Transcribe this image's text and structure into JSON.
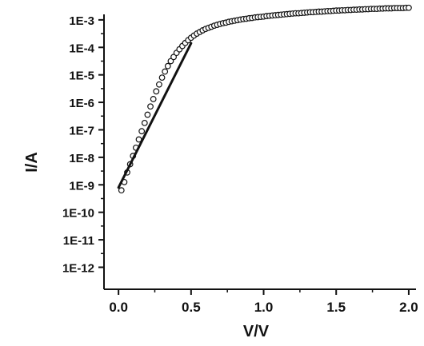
{
  "chart_data": {
    "type": "scatter",
    "title": "",
    "xlabel": "V/V",
    "ylabel": "I/A",
    "x_ticks": [
      "0.0",
      "0.5",
      "1.0",
      "1.5",
      "2.0"
    ],
    "x_tick_values": [
      0.0,
      0.5,
      1.0,
      1.5,
      2.0
    ],
    "y_ticks": [
      "1E-12",
      "1E-11",
      "1E-10",
      "1E-9",
      "1E-8",
      "1E-7",
      "1E-6",
      "1E-5",
      "1E-4",
      "1E-3"
    ],
    "y_tick_values": [
      -12,
      -11,
      -10,
      -9,
      -8,
      -7,
      -6,
      -5,
      -4,
      -3
    ],
    "xlim": [
      -0.1,
      2.05
    ],
    "ylim": [
      "1E-12.8",
      "1E-2.8"
    ],
    "y_scale": "log",
    "grid": false,
    "series": [
      {
        "marker": "open-circle",
        "x": [
          0.02,
          0.04,
          0.06,
          0.08,
          0.1,
          0.12,
          0.14,
          0.16,
          0.18,
          0.2,
          0.22,
          0.24,
          0.26,
          0.28,
          0.3,
          0.32,
          0.34,
          0.36,
          0.38,
          0.4,
          0.42,
          0.44,
          0.46,
          0.48,
          0.5,
          0.52,
          0.54,
          0.56,
          0.58,
          0.6,
          0.62,
          0.64,
          0.66,
          0.68,
          0.7,
          0.72,
          0.74,
          0.76,
          0.78,
          0.8,
          0.82,
          0.84,
          0.86,
          0.88,
          0.9,
          0.92,
          0.94,
          0.96,
          0.98,
          1.0,
          1.02,
          1.04,
          1.06,
          1.08,
          1.1,
          1.12,
          1.14,
          1.16,
          1.18,
          1.2,
          1.22,
          1.24,
          1.26,
          1.28,
          1.3,
          1.32,
          1.34,
          1.36,
          1.38,
          1.4,
          1.42,
          1.44,
          1.46,
          1.48,
          1.5,
          1.52,
          1.54,
          1.56,
          1.58,
          1.6,
          1.62,
          1.64,
          1.66,
          1.68,
          1.7,
          1.72,
          1.74,
          1.76,
          1.78,
          1.8,
          1.82,
          1.84,
          1.86,
          1.88,
          1.9,
          1.92,
          1.94,
          1.96,
          1.98,
          2.0
        ],
        "log10_y": [
          -9.2,
          -8.9,
          -8.55,
          -8.25,
          -7.95,
          -7.65,
          -7.35,
          -7.05,
          -6.75,
          -6.45,
          -6.15,
          -5.88,
          -5.6,
          -5.35,
          -5.1,
          -4.88,
          -4.68,
          -4.5,
          -4.35,
          -4.2,
          -4.07,
          -3.95,
          -3.84,
          -3.74,
          -3.65,
          -3.57,
          -3.5,
          -3.44,
          -3.38,
          -3.33,
          -3.29,
          -3.25,
          -3.21,
          -3.18,
          -3.15,
          -3.12,
          -3.1,
          -3.07,
          -3.05,
          -3.03,
          -3.01,
          -2.99,
          -2.97,
          -2.96,
          -2.94,
          -2.93,
          -2.91,
          -2.9,
          -2.89,
          -2.88,
          -2.86,
          -2.85,
          -2.84,
          -2.83,
          -2.82,
          -2.81,
          -2.8,
          -2.79,
          -2.78,
          -2.77,
          -2.76,
          -2.76,
          -2.75,
          -2.74,
          -2.73,
          -2.72,
          -2.72,
          -2.71,
          -2.7,
          -2.7,
          -2.69,
          -2.68,
          -2.68,
          -2.67,
          -2.66,
          -2.66,
          -2.65,
          -2.65,
          -2.64,
          -2.64,
          -2.63,
          -2.63,
          -2.62,
          -2.62,
          -2.61,
          -2.61,
          -2.6,
          -2.6,
          -2.6,
          -2.59,
          -2.59,
          -2.58,
          -2.58,
          -2.58,
          -2.57,
          -2.57,
          -2.57,
          -2.57,
          -2.56,
          -2.56
        ]
      },
      {
        "marker": "solid-line",
        "x": [
          0.0,
          0.5
        ],
        "log10_y": [
          -9.1,
          -3.85
        ]
      }
    ],
    "colors": {
      "axis": "#111111",
      "markers": "#111111",
      "fit_line": "#111111",
      "background": "#ffffff"
    }
  }
}
